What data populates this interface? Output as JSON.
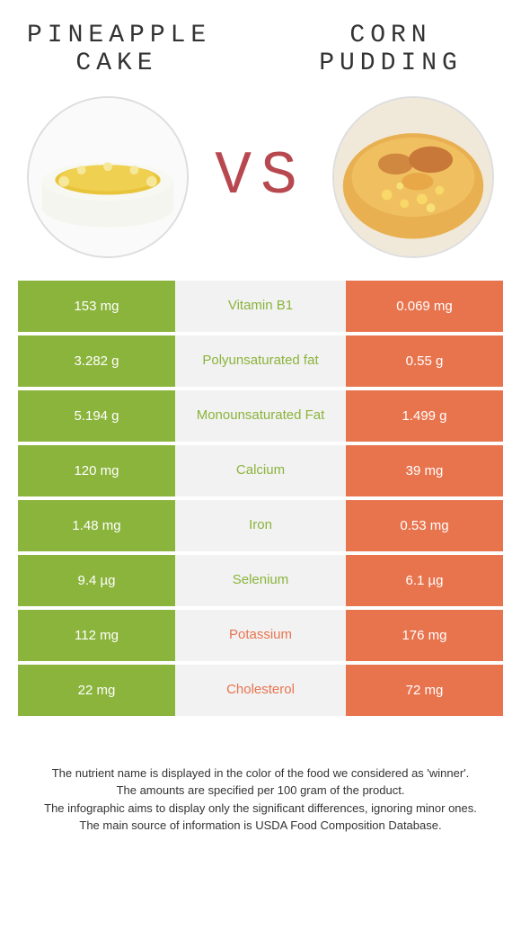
{
  "infographic": {
    "type": "infographic",
    "left_title": "PINEAPPLE\nCAKE",
    "right_title": "CORN\nPUDDING",
    "vs_label": "VS",
    "colors": {
      "left_bg": "#8bb43c",
      "right_bg": "#e8744e",
      "mid_bg": "#f2f2f2",
      "left_text": "#8bb43c",
      "right_text": "#e8744e",
      "vs_color": "#b8484f"
    },
    "rows": [
      {
        "left": "153 mg",
        "mid": "Vitamin B1",
        "right": "0.069 mg",
        "winner": "left"
      },
      {
        "left": "3.282 g",
        "mid": "Polyunsaturated fat",
        "right": "0.55 g",
        "winner": "left"
      },
      {
        "left": "5.194 g",
        "mid": "Monounsaturated Fat",
        "right": "1.499 g",
        "winner": "left"
      },
      {
        "left": "120 mg",
        "mid": "Calcium",
        "right": "39 mg",
        "winner": "left"
      },
      {
        "left": "1.48 mg",
        "mid": "Iron",
        "right": "0.53 mg",
        "winner": "left"
      },
      {
        "left": "9.4 µg",
        "mid": "Selenium",
        "right": "6.1 µg",
        "winner": "left"
      },
      {
        "left": "112 mg",
        "mid": "Potassium",
        "right": "176 mg",
        "winner": "right"
      },
      {
        "left": "22 mg",
        "mid": "Cholesterol",
        "right": "72 mg",
        "winner": "right"
      }
    ],
    "footer_lines": [
      "The nutrient name is displayed in the color of the food we considered as 'winner'.",
      "The amounts are specified per 100 gram of the product.",
      "The infographic aims to display only the significant differences, ignoring minor ones.",
      "The main source of information is USDA Food Composition Database."
    ]
  }
}
